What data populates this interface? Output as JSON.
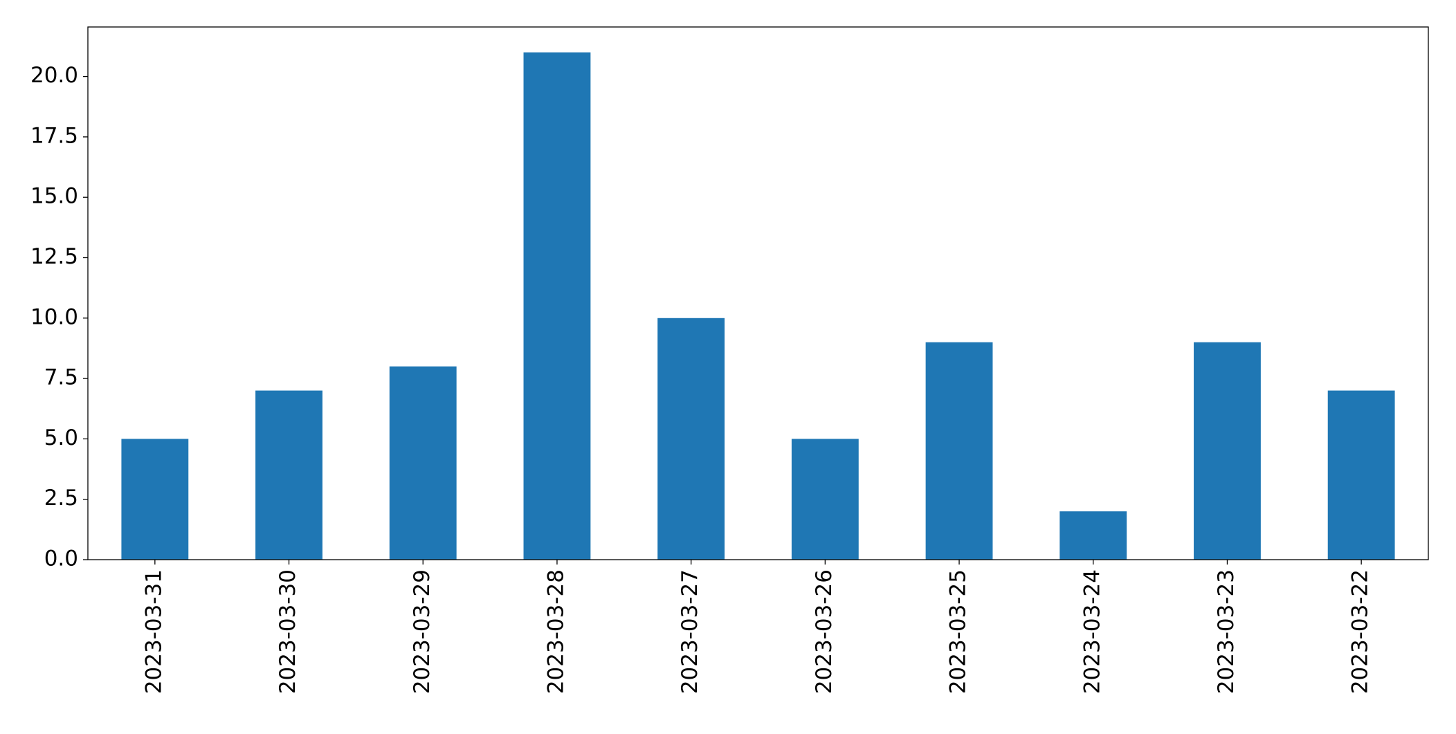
{
  "chart_data": {
    "type": "bar",
    "categories": [
      "2023-03-31",
      "2023-03-30",
      "2023-03-29",
      "2023-03-28",
      "2023-03-27",
      "2023-03-26",
      "2023-03-25",
      "2023-03-24",
      "2023-03-23",
      "2023-03-22"
    ],
    "values": [
      5,
      7,
      8,
      21,
      10,
      5,
      9,
      2,
      9,
      7
    ],
    "color": "#1f77b4",
    "ylim": [
      0,
      22.05
    ],
    "yticks": [
      {
        "value": 0,
        "label": "0.0"
      },
      2.5,
      {
        "value": 5,
        "label": "5.0"
      },
      7.5,
      {
        "value": 10,
        "label": "10.0"
      },
      12.5,
      {
        "value": 15,
        "label": "15.0"
      },
      17.5,
      {
        "value": 20,
        "label": "20.0"
      }
    ],
    "grid": false
  }
}
